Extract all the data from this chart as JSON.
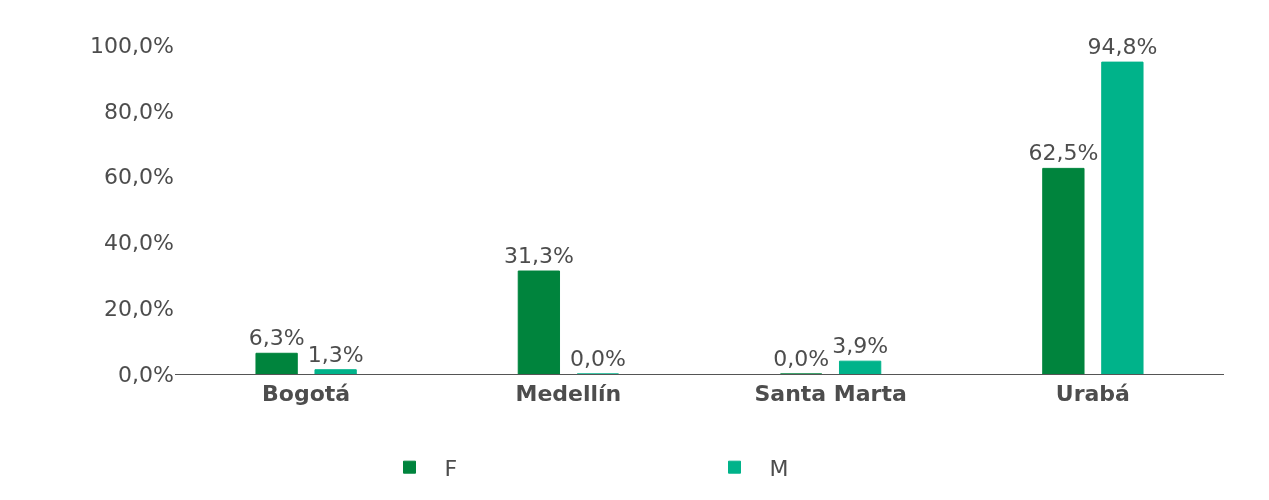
{
  "chart_data": {
    "type": "bar",
    "categories": [
      "Bogotá",
      "Medellín",
      "Santa Marta",
      "Urabá"
    ],
    "series": [
      {
        "name": "F",
        "color": "#00843d",
        "values": [
          6.3,
          31.3,
          0.0,
          62.5
        ],
        "value_labels": [
          "6,3%",
          "31,3%",
          "0,0%",
          "62,5%"
        ]
      },
      {
        "name": "M",
        "color": "#00b38a",
        "values": [
          1.3,
          0.0,
          3.9,
          94.8
        ],
        "value_labels": [
          "1,3%",
          "0,0%",
          "3,9%",
          "94,8%"
        ]
      }
    ],
    "ylim": [
      0,
      100
    ],
    "yticks": [
      {
        "value": 0,
        "label": "0,0%"
      },
      {
        "value": 20,
        "label": "20,0%"
      },
      {
        "value": 40,
        "label": "40,0%"
      },
      {
        "value": 60,
        "label": "60,0%"
      },
      {
        "value": 80,
        "label": "80,0%"
      },
      {
        "value": 100,
        "label": "100,0%"
      }
    ],
    "grid": false,
    "legend": "bottom"
  }
}
